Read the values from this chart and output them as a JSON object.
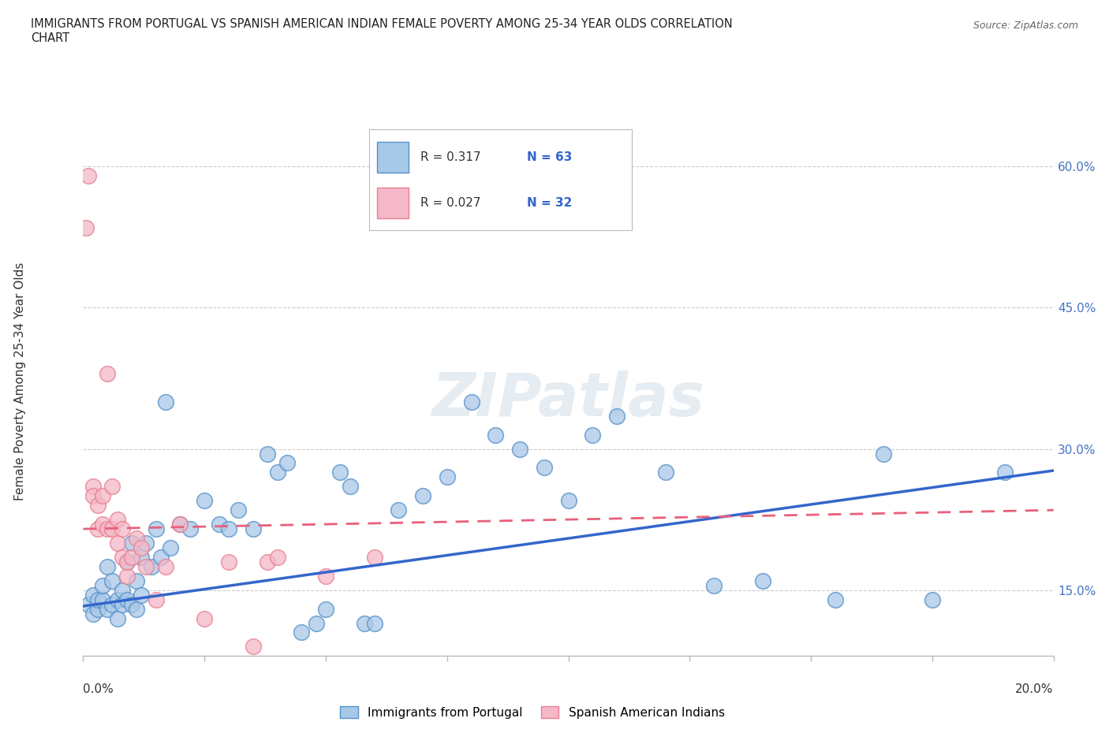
{
  "title": "IMMIGRANTS FROM PORTUGAL VS SPANISH AMERICAN INDIAN FEMALE POVERTY AMONG 25-34 YEAR OLDS CORRELATION\nCHART",
  "source": "Source: ZipAtlas.com",
  "ylabel": "Female Poverty Among 25-34 Year Olds",
  "xlim": [
    0.0,
    0.2
  ],
  "ylim": [
    0.08,
    0.66
  ],
  "yticks": [
    0.15,
    0.3,
    0.45,
    0.6
  ],
  "ytick_labels": [
    "15.0%",
    "30.0%",
    "45.0%",
    "60.0%"
  ],
  "xticks": [
    0.0,
    0.025,
    0.05,
    0.075,
    0.1,
    0.125,
    0.15,
    0.175,
    0.2
  ],
  "blue_R": 0.317,
  "blue_N": 63,
  "pink_R": 0.027,
  "pink_N": 32,
  "blue_color": "#a8c8e8",
  "pink_color": "#f4b8c8",
  "blue_edge_color": "#5590c8",
  "pink_edge_color": "#e88090",
  "blue_line_color": "#3366cc",
  "pink_line_color": "#e8607a",
  "legend_blue_label": "Immigrants from Portugal",
  "legend_pink_label": "Spanish American Indians",
  "watermark": "ZIPatlas",
  "blue_scatter_x": [
    0.001,
    0.002,
    0.002,
    0.003,
    0.003,
    0.004,
    0.004,
    0.005,
    0.005,
    0.006,
    0.006,
    0.007,
    0.007,
    0.008,
    0.008,
    0.009,
    0.009,
    0.01,
    0.01,
    0.011,
    0.011,
    0.012,
    0.012,
    0.013,
    0.014,
    0.015,
    0.016,
    0.017,
    0.018,
    0.02,
    0.022,
    0.025,
    0.028,
    0.03,
    0.032,
    0.035,
    0.038,
    0.04,
    0.042,
    0.045,
    0.048,
    0.05,
    0.053,
    0.055,
    0.058,
    0.06,
    0.065,
    0.07,
    0.075,
    0.08,
    0.085,
    0.09,
    0.095,
    0.1,
    0.105,
    0.11,
    0.12,
    0.13,
    0.14,
    0.155,
    0.165,
    0.175,
    0.19
  ],
  "blue_scatter_y": [
    0.135,
    0.145,
    0.125,
    0.13,
    0.14,
    0.14,
    0.155,
    0.13,
    0.175,
    0.135,
    0.16,
    0.12,
    0.14,
    0.135,
    0.15,
    0.14,
    0.18,
    0.135,
    0.2,
    0.13,
    0.16,
    0.145,
    0.185,
    0.2,
    0.175,
    0.215,
    0.185,
    0.35,
    0.195,
    0.22,
    0.215,
    0.245,
    0.22,
    0.215,
    0.235,
    0.215,
    0.295,
    0.275,
    0.285,
    0.105,
    0.115,
    0.13,
    0.275,
    0.26,
    0.115,
    0.115,
    0.235,
    0.25,
    0.27,
    0.35,
    0.315,
    0.3,
    0.28,
    0.245,
    0.315,
    0.335,
    0.275,
    0.155,
    0.16,
    0.14,
    0.295,
    0.14,
    0.275
  ],
  "pink_scatter_x": [
    0.0005,
    0.001,
    0.002,
    0.002,
    0.003,
    0.003,
    0.004,
    0.004,
    0.005,
    0.005,
    0.006,
    0.006,
    0.007,
    0.007,
    0.008,
    0.008,
    0.009,
    0.009,
    0.01,
    0.011,
    0.012,
    0.013,
    0.015,
    0.017,
    0.02,
    0.025,
    0.03,
    0.035,
    0.038,
    0.04,
    0.05,
    0.06
  ],
  "pink_scatter_y": [
    0.535,
    0.59,
    0.26,
    0.25,
    0.24,
    0.215,
    0.25,
    0.22,
    0.38,
    0.215,
    0.215,
    0.26,
    0.2,
    0.225,
    0.185,
    0.215,
    0.165,
    0.18,
    0.185,
    0.205,
    0.195,
    0.175,
    0.14,
    0.175,
    0.22,
    0.12,
    0.18,
    0.09,
    0.18,
    0.185,
    0.165,
    0.185
  ],
  "blue_trend_x": [
    0.0,
    0.2
  ],
  "blue_trend_y": [
    0.133,
    0.277
  ],
  "pink_trend_x": [
    0.0,
    0.2
  ],
  "pink_trend_y": [
    0.215,
    0.235
  ]
}
